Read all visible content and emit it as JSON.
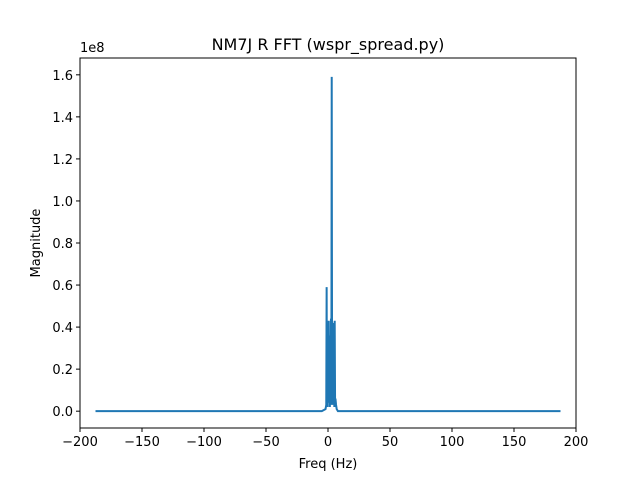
{
  "chart_data": {
    "type": "line",
    "title": "NM7J R FFT (wspr_spread.py)",
    "xlabel": "Freq (Hz)",
    "ylabel": "Magnitude",
    "y_offset_text": "1e8",
    "xlim": [
      -200,
      200
    ],
    "ylim": [
      -0.08,
      1.68
    ],
    "xticks": [
      -200,
      -150,
      -100,
      -50,
      0,
      50,
      100,
      150,
      200
    ],
    "xtick_labels": [
      "−200",
      "−150",
      "−100",
      "−50",
      "0",
      "50",
      "100",
      "150",
      "200"
    ],
    "yticks": [
      0.0,
      0.2,
      0.4,
      0.6,
      0.8,
      1.0,
      1.2,
      1.4,
      1.6
    ],
    "ytick_labels": [
      "0.0",
      "0.2",
      "0.4",
      "0.6",
      "0.8",
      "1.0",
      "1.2",
      "1.4",
      "1.6"
    ],
    "grid": false,
    "line_color": "#1f77b4",
    "series": [
      {
        "x": [
          -187.5,
          -100,
          -50,
          -20,
          -5,
          -2,
          -1.4,
          -1.1,
          -0.9,
          -0.6,
          -0.3,
          0.0,
          0.3,
          0.6,
          0.9,
          1.2,
          1.5,
          1.8,
          2.1,
          2.4,
          2.7,
          3.0,
          3.3,
          3.6,
          3.9,
          4.2,
          4.5,
          4.8,
          5.1,
          5.4,
          5.7,
          6.0,
          6.5,
          7.0,
          8,
          15,
          50,
          100,
          187.5
        ],
        "values": [
          0.0,
          0.0,
          0.0,
          0.0,
          0.0,
          0.01,
          0.03,
          0.59,
          0.04,
          0.07,
          0.02,
          0.28,
          0.06,
          0.43,
          0.04,
          0.3,
          0.02,
          0.36,
          0.05,
          0.44,
          0.03,
          1.59,
          0.06,
          0.35,
          0.03,
          0.42,
          0.05,
          0.38,
          0.02,
          0.43,
          0.04,
          0.06,
          0.03,
          0.01,
          0.0,
          0.0,
          0.0,
          0.0,
          0.0
        ]
      }
    ]
  }
}
